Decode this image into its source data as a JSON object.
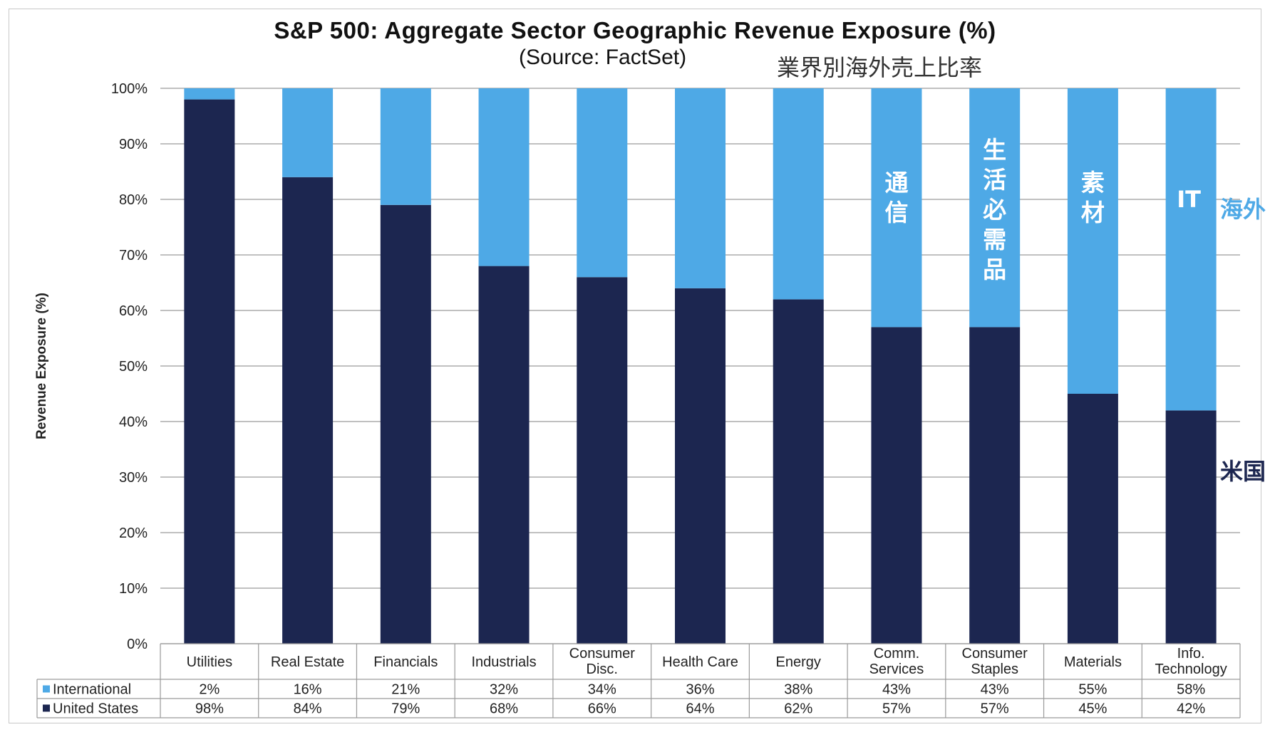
{
  "chart_data": {
    "type": "bar",
    "stacked": true,
    "title": "S&P 500: Aggregate Sector Geographic Revenue Exposure (%)",
    "subtitle": "(Source: FactSet)",
    "annotation_title": "業界別海外売上比率",
    "ylabel": "Revenue Exposure (%)",
    "ylim": [
      0,
      100
    ],
    "yticks": [
      "0%",
      "10%",
      "20%",
      "30%",
      "40%",
      "50%",
      "60%",
      "70%",
      "80%",
      "90%",
      "100%"
    ],
    "grid": true,
    "categories": [
      "Utilities",
      "Real Estate",
      "Financials",
      "Industrials",
      "Consumer Disc.",
      "Health Care",
      "Energy",
      "Comm. Services",
      "Consumer Staples",
      "Materials",
      "Info. Technology"
    ],
    "series": [
      {
        "name": "International",
        "color": "#4ea9e6",
        "values": [
          2,
          16,
          21,
          32,
          34,
          36,
          38,
          43,
          43,
          55,
          58
        ],
        "labels": [
          "2%",
          "16%",
          "21%",
          "32%",
          "34%",
          "36%",
          "38%",
          "43%",
          "43%",
          "55%",
          "58%"
        ]
      },
      {
        "name": "United States",
        "color": "#1c2650",
        "values": [
          98,
          84,
          79,
          68,
          66,
          64,
          62,
          57,
          57,
          45,
          42
        ],
        "labels": [
          "98%",
          "84%",
          "79%",
          "68%",
          "66%",
          "64%",
          "62%",
          "57%",
          "57%",
          "45%",
          "42%"
        ]
      }
    ],
    "bar_annotations": [
      {
        "category_index": 7,
        "text": "通信",
        "color": "#ffffff"
      },
      {
        "category_index": 8,
        "text": "生活必需品",
        "color": "#ffffff"
      },
      {
        "category_index": 9,
        "text": "素材",
        "color": "#ffffff"
      },
      {
        "category_index": 10,
        "text": "IT",
        "color": "#ffffff"
      }
    ],
    "side_labels": [
      {
        "text": "海外",
        "color": "#4ea9e6"
      },
      {
        "text": "米国",
        "color": "#1c2650"
      }
    ]
  }
}
